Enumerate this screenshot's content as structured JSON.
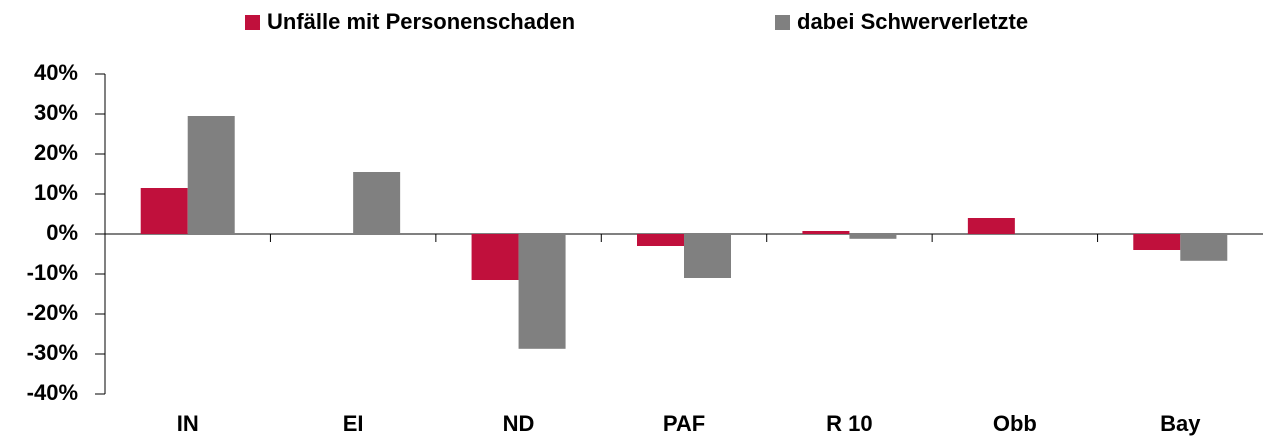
{
  "chart_data": {
    "type": "bar",
    "categories": [
      "IN",
      "EI",
      "ND",
      "PAF",
      "R 10",
      "Obb",
      "Bay"
    ],
    "series": [
      {
        "name": "Unfälle mit Personenschaden",
        "color": "#c0103c",
        "values": [
          11.5,
          0,
          -11.5,
          -3,
          0.75,
          4,
          -4
        ]
      },
      {
        "name": "dabei Schwerverletzte",
        "color": "#808080",
        "values": [
          29.5,
          15.5,
          -28.7,
          -11,
          -1.2,
          0,
          -6.7
        ]
      }
    ],
    "ylim": [
      -40,
      40
    ],
    "yticks": [
      {
        "value": -40,
        "label": "-40%"
      },
      {
        "value": -30,
        "label": "-30%"
      },
      {
        "value": -20,
        "label": "-20%"
      },
      {
        "value": -10,
        "label": "-10%"
      },
      {
        "value": 0,
        "label": "0%"
      },
      {
        "value": 10,
        "label": "10%"
      },
      {
        "value": 20,
        "label": "20%"
      },
      {
        "value": 30,
        "label": "30%"
      },
      {
        "value": 40,
        "label": "40%"
      }
    ],
    "legend": "top"
  }
}
